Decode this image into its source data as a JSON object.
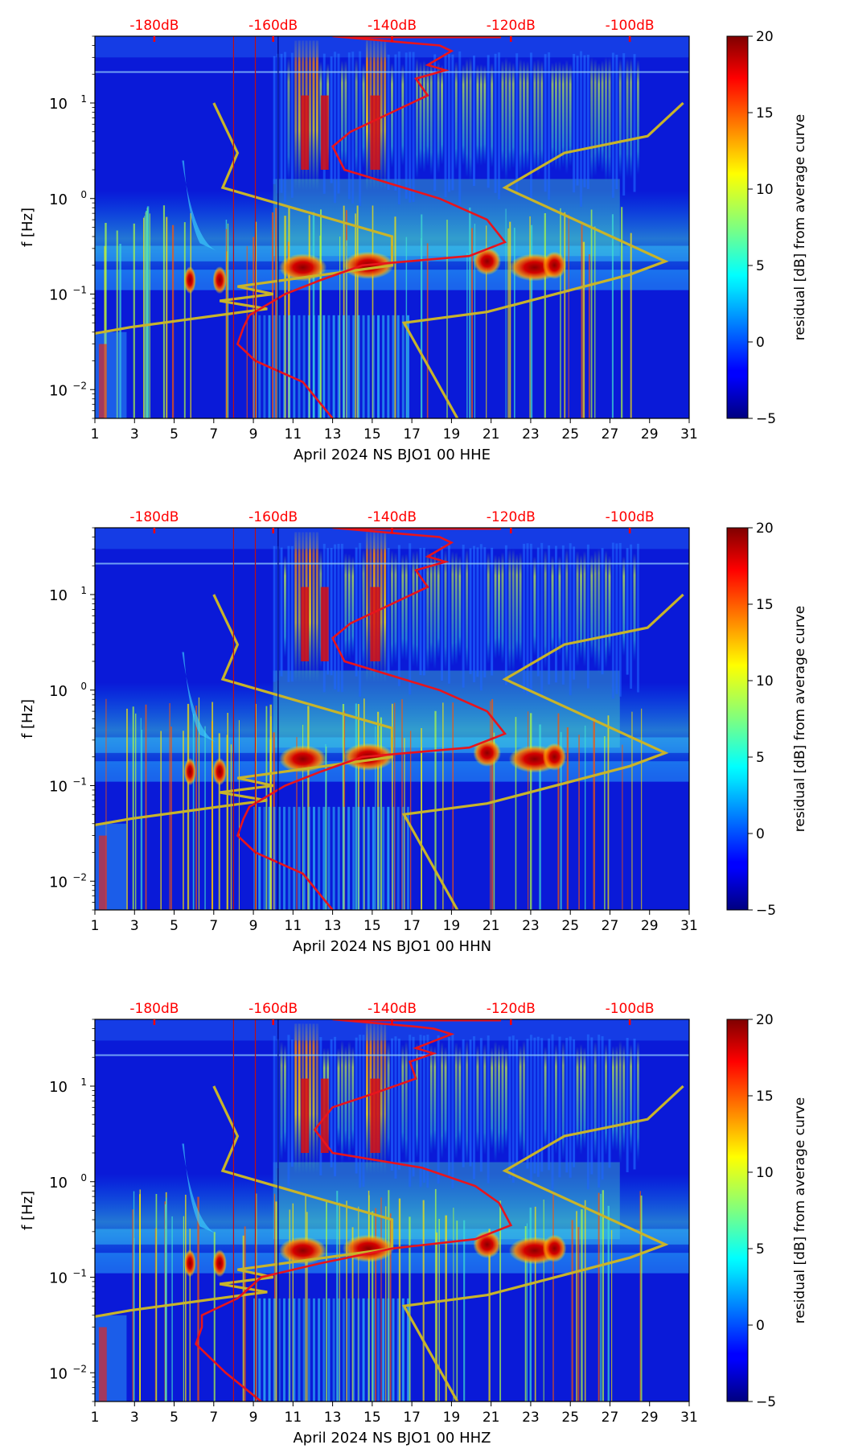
{
  "figure": {
    "panel_count": 3,
    "top_axis_color": "#ff0000",
    "average_curve_color": "#e8141c",
    "reference_curve_color": "#c8b42a"
  },
  "chart_data": [
    {
      "type": "heatmap",
      "xlabel": "April 2024 NS BJO1 00 HHE",
      "ylabel": "f [Hz]",
      "x_ticks": [
        "1",
        "3",
        "5",
        "7",
        "9",
        "11",
        "13",
        "15",
        "17",
        "19",
        "21",
        "23",
        "25",
        "27",
        "29",
        "31"
      ],
      "x_range": [
        1,
        31
      ],
      "y_scale": "log",
      "y_range": [
        0.005,
        50
      ],
      "y_ticks": [
        0.01,
        0.1,
        1,
        10
      ],
      "y_tick_labels": [
        {
          "base": "10",
          "exp": "−2"
        },
        {
          "base": "10",
          "exp": "−1"
        },
        {
          "base": "10",
          "exp": "0"
        },
        {
          "base": "10",
          "exp": "1"
        }
      ],
      "top_axis_labels": [
        "-180dB",
        "-160dB",
        "-140dB",
        "-120dB",
        "-100dB"
      ],
      "colorbar": {
        "label": "residual [dB] from average curve",
        "ticks": [
          "20",
          "15",
          "10",
          "5",
          "0",
          "−5"
        ],
        "range": [
          -5,
          20
        ],
        "colormap": "jet"
      }
    },
    {
      "type": "heatmap",
      "xlabel": "April 2024 NS BJO1 00 HHN",
      "ylabel": "f [Hz]",
      "x_ticks": [
        "1",
        "3",
        "5",
        "7",
        "9",
        "11",
        "13",
        "15",
        "17",
        "19",
        "21",
        "23",
        "25",
        "27",
        "29",
        "31"
      ],
      "x_range": [
        1,
        31
      ],
      "y_scale": "log",
      "y_range": [
        0.005,
        50
      ],
      "y_ticks": [
        0.01,
        0.1,
        1,
        10
      ],
      "y_tick_labels": [
        {
          "base": "10",
          "exp": "−2"
        },
        {
          "base": "10",
          "exp": "−1"
        },
        {
          "base": "10",
          "exp": "0"
        },
        {
          "base": "10",
          "exp": "1"
        }
      ],
      "top_axis_labels": [
        "-180dB",
        "-160dB",
        "-140dB",
        "-120dB",
        "-100dB"
      ],
      "colorbar": {
        "label": "residual [dB] from average curve",
        "ticks": [
          "20",
          "15",
          "10",
          "5",
          "0",
          "−5"
        ],
        "range": [
          -5,
          20
        ],
        "colormap": "jet"
      }
    },
    {
      "type": "heatmap",
      "xlabel": "April 2024 NS BJO1 00 HHZ",
      "ylabel": "f [Hz]",
      "x_ticks": [
        "1",
        "3",
        "5",
        "7",
        "9",
        "11",
        "13",
        "15",
        "17",
        "19",
        "21",
        "23",
        "25",
        "27",
        "29",
        "31"
      ],
      "x_range": [
        1,
        31
      ],
      "y_scale": "log",
      "y_range": [
        0.005,
        50
      ],
      "y_ticks": [
        0.01,
        0.1,
        1,
        10
      ],
      "y_tick_labels": [
        {
          "base": "10",
          "exp": "−2"
        },
        {
          "base": "10",
          "exp": "−1"
        },
        {
          "base": "10",
          "exp": "0"
        },
        {
          "base": "10",
          "exp": "1"
        }
      ],
      "top_axis_labels": [
        "-180dB",
        "-160dB",
        "-140dB",
        "-120dB",
        "-100dB"
      ],
      "colorbar": {
        "label": "residual [dB] from average curve",
        "ticks": [
          "20",
          "15",
          "10",
          "5",
          "0",
          "−5"
        ],
        "range": [
          -5,
          20
        ],
        "colormap": "jet"
      }
    }
  ]
}
